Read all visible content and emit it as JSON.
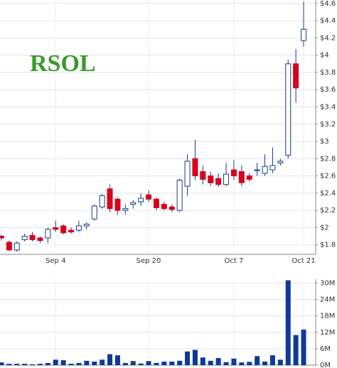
{
  "chart_data": [
    {
      "type": "candlestick",
      "title": "RSOL",
      "categories": [
        null,
        null,
        null,
        null,
        null,
        null,
        null,
        "Sep 4",
        null,
        null,
        null,
        null,
        null,
        null,
        null,
        null,
        null,
        null,
        null,
        "Sep 20",
        null,
        null,
        null,
        null,
        null,
        null,
        null,
        null,
        null,
        null,
        "Oct 7",
        null,
        null,
        null,
        null,
        null,
        null,
        null,
        null,
        "Oct 21"
      ],
      "open": [
        1.9,
        1.83,
        1.74,
        1.86,
        1.91,
        1.88,
        1.88,
        2.0,
        2.02,
        1.97,
        1.97,
        2.02,
        2.1,
        2.24,
        2.45,
        2.33,
        2.2,
        2.27,
        2.3,
        2.38,
        2.33,
        2.27,
        2.24,
        2.2,
        2.48,
        2.8,
        2.65,
        2.6,
        2.57,
        2.5,
        2.67,
        2.65,
        2.6,
        2.66,
        2.63,
        2.67,
        2.75,
        2.84,
        3.9,
        4.17
      ],
      "high": [
        1.92,
        1.85,
        1.84,
        1.93,
        1.95,
        1.9,
        2.0,
        2.08,
        2.04,
        2.0,
        2.08,
        2.06,
        2.27,
        2.39,
        2.5,
        2.35,
        2.27,
        2.32,
        2.4,
        2.43,
        2.35,
        2.3,
        2.27,
        2.57,
        2.85,
        3.02,
        2.72,
        2.65,
        2.63,
        2.75,
        2.78,
        2.72,
        2.63,
        2.75,
        2.85,
        2.93,
        2.8,
        3.95,
        4.07,
        4.62
      ],
      "low": [
        1.85,
        1.73,
        1.72,
        1.84,
        1.84,
        1.82,
        1.82,
        1.95,
        1.92,
        1.93,
        1.95,
        1.98,
        2.08,
        2.22,
        2.18,
        2.15,
        2.15,
        2.22,
        2.25,
        2.3,
        2.2,
        2.2,
        2.18,
        2.18,
        2.37,
        2.55,
        2.5,
        2.48,
        2.47,
        2.48,
        2.55,
        2.48,
        2.53,
        2.6,
        2.6,
        2.63,
        2.72,
        2.8,
        3.45,
        4.1
      ],
      "close": [
        1.88,
        1.74,
        1.82,
        1.9,
        1.86,
        1.85,
        1.98,
        1.98,
        1.94,
        1.95,
        2.02,
        2.04,
        2.25,
        2.37,
        2.22,
        2.2,
        2.22,
        2.29,
        2.34,
        2.33,
        2.23,
        2.22,
        2.21,
        2.55,
        2.77,
        2.6,
        2.56,
        2.52,
        2.5,
        2.62,
        2.6,
        2.52,
        2.56,
        2.67,
        2.71,
        2.72,
        2.77,
        3.9,
        3.62,
        4.3
      ],
      "up_color": "#ffffff",
      "down_color": "#d8001c",
      "edge_color": "#1a3a8a",
      "ylim": [
        1.69,
        4.64
      ],
      "yticks": [
        {
          "value": 1.8,
          "label": "$1.8"
        },
        {
          "value": 2,
          "label": "$2"
        },
        {
          "value": 2.2,
          "label": "$2.2"
        },
        {
          "value": 2.4,
          "label": "$2.4"
        },
        {
          "value": 2.6,
          "label": "$2.6"
        },
        {
          "value": 2.8,
          "label": "$2.8"
        },
        {
          "value": 3,
          "label": "$3"
        },
        {
          "value": 3.2,
          "label": "$3.2"
        },
        {
          "value": 3.4,
          "label": "$3.4"
        },
        {
          "value": 3.6,
          "label": "$3.6"
        },
        {
          "value": 3.8,
          "label": "$3.8"
        },
        {
          "value": 4,
          "label": "$4"
        },
        {
          "value": 4.2,
          "label": "$4.2"
        },
        {
          "value": 4.4,
          "label": "$4.4"
        },
        {
          "value": 4.6,
          "label": "$4.6"
        }
      ],
      "grid": true
    },
    {
      "type": "bar",
      "color": "#0d3a9a",
      "values": [
        1,
        0.5,
        0.5,
        0.5,
        0.3,
        0.5,
        0.8,
        2,
        1.8,
        0.5,
        0.8,
        1.6,
        1.3,
        2,
        4,
        3.6,
        0.8,
        1.5,
        0.6,
        1.5,
        0.8,
        1.3,
        1.3,
        1.6,
        5,
        5.6,
        2.8,
        1.6,
        2.6,
        1.1,
        2.4,
        1,
        1.2,
        3.3,
        1.3,
        3.6,
        2,
        31,
        11,
        13
      ],
      "ylim": [
        0,
        31.4
      ],
      "yticks": [
        {
          "value": 0,
          "label": "0M"
        },
        {
          "value": 6,
          "label": "6M"
        },
        {
          "value": 12,
          "label": "12M"
        },
        {
          "value": 18,
          "label": "18M"
        },
        {
          "value": 24,
          "label": "24M"
        },
        {
          "value": 30,
          "label": "30M"
        }
      ],
      "grid": true
    }
  ]
}
